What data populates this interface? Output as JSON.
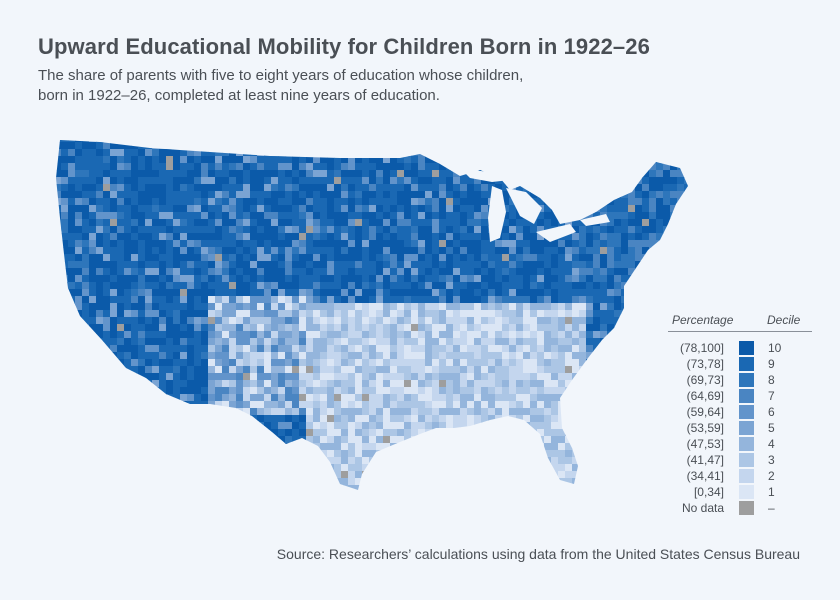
{
  "header": {
    "title": "Upward Educational Mobility for Children Born in 1922–26",
    "subtitle_line1": "The share of parents with five to eight years of education whose children,",
    "subtitle_line2": "born in 1922–26, completed at least nine years of education."
  },
  "legend": {
    "percentage_heading": "Percentage",
    "decile_heading": "Decile",
    "rows": [
      {
        "range": "(78,100]",
        "decile": "10",
        "color": "#0b5aa9"
      },
      {
        "range": "(73,78]",
        "decile": "9",
        "color": "#1a68b3"
      },
      {
        "range": "(69,73]",
        "decile": "8",
        "color": "#2e76bb"
      },
      {
        "range": "(64,69]",
        "decile": "7",
        "color": "#4a85c2"
      },
      {
        "range": "(59,64]",
        "decile": "6",
        "color": "#6294cb"
      },
      {
        "range": "(53,59]",
        "decile": "5",
        "color": "#7ba4d3"
      },
      {
        "range": "(47,53]",
        "decile": "4",
        "color": "#94b5dc"
      },
      {
        "range": "(41,47]",
        "decile": "3",
        "color": "#acc6e5"
      },
      {
        "range": "(34,41]",
        "decile": "2",
        "color": "#c4d6ee"
      },
      {
        "range": "[0,34]",
        "decile": "1",
        "color": "#dbe6f5"
      },
      {
        "range": "No data",
        "decile": "–",
        "color": "#9e9e9e"
      }
    ]
  },
  "source": "Source: Researchers’ calculations using data from the United States Census Bureau"
}
